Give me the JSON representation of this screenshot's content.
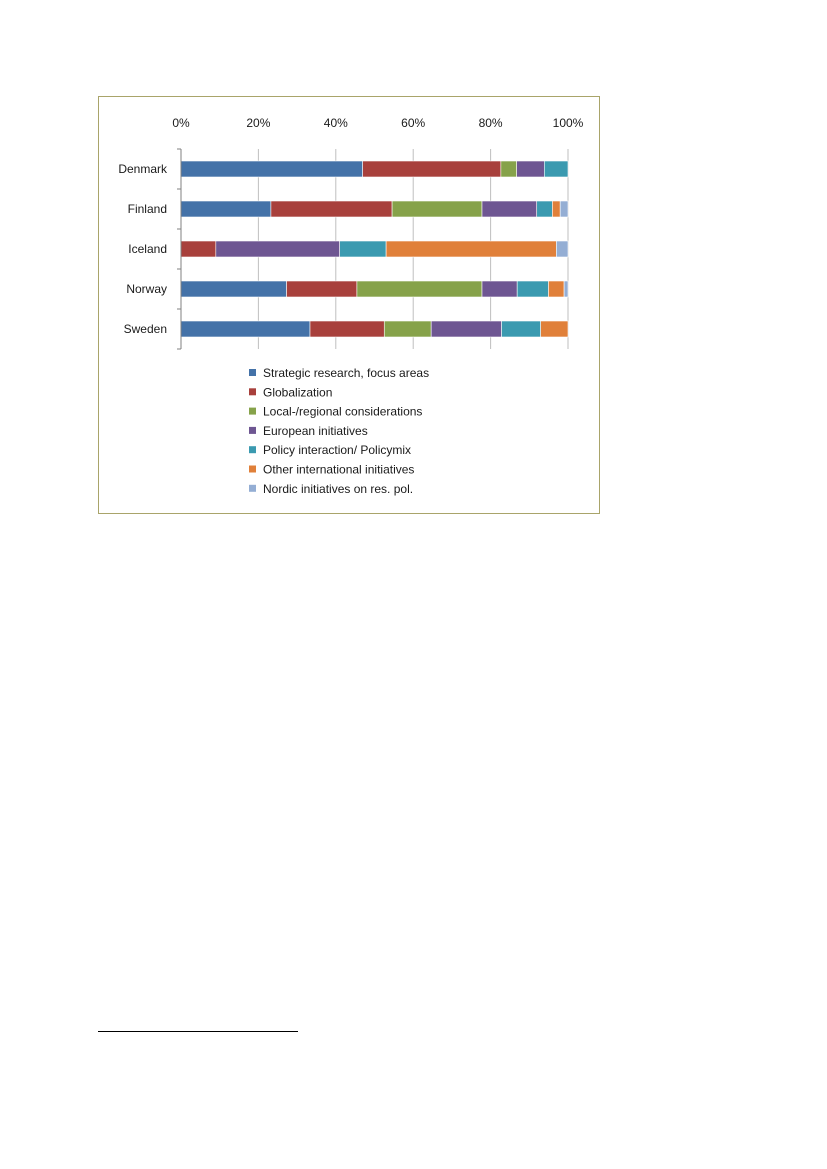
{
  "chart_data": {
    "type": "bar",
    "orientation": "horizontal",
    "stacked": "percent",
    "categories": [
      "Denmark",
      "Finland",
      "Iceland",
      "Norway",
      "Sweden"
    ],
    "x_ticks": [
      "0%",
      "20%",
      "40%",
      "60%",
      "80%",
      "100%"
    ],
    "xlim": [
      0,
      100
    ],
    "grid": true,
    "legend_position": "bottom",
    "series": [
      {
        "name": "Strategic research, focus areas",
        "color": "#4472a8",
        "values": [
          46,
          23,
          0,
          27,
          33
        ]
      },
      {
        "name": "Globalization",
        "color": "#a8403c",
        "values": [
          35,
          31,
          9,
          18,
          19
        ]
      },
      {
        "name": "Local-/regional considerations",
        "color": "#86a24a",
        "values": [
          4,
          23,
          0,
          32,
          12
        ]
      },
      {
        "name": "European initiatives",
        "color": "#6e5692",
        "values": [
          7,
          14,
          32,
          9,
          18
        ]
      },
      {
        "name": "Policy interaction/ Policymix",
        "color": "#3b9ab0",
        "values": [
          6,
          4,
          12,
          8,
          10
        ]
      },
      {
        "name": "Other international initiatives",
        "color": "#e0803a",
        "values": [
          0,
          2,
          44,
          4,
          7
        ]
      },
      {
        "name": "Nordic initiatives on res. pol.",
        "color": "#94aed4",
        "values": [
          0,
          2,
          3,
          1,
          0
        ]
      }
    ]
  }
}
